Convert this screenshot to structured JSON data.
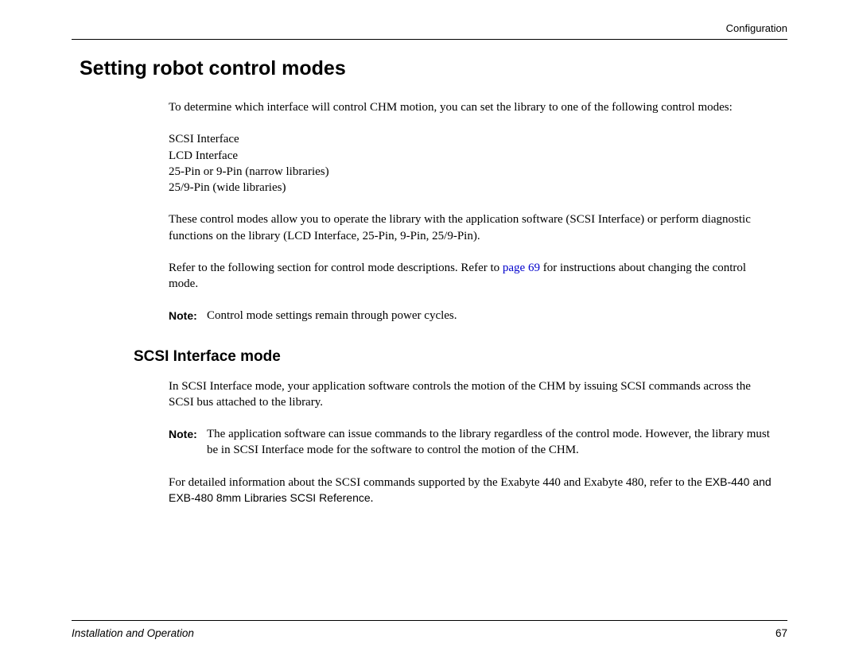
{
  "header": {
    "section": "Configuration"
  },
  "title": "Setting robot control modes",
  "intro": "To determine which interface will control CHM motion, you can set the library to one of the following control modes:",
  "modes": [
    "SCSI Interface",
    "LCD Interface",
    "25-Pin or 9-Pin (narrow libraries)",
    "25/9-Pin (wide libraries)"
  ],
  "para2": "These control modes allow you to operate the library with the application software (SCSI Interface) or perform diagnostic functions on the library (LCD Interface, 25-Pin, 9-Pin, 25/9-Pin).",
  "para3_pre": "Refer to the following section for control mode descriptions. Refer to ",
  "para3_link": "page 69",
  "para3_post": " for instructions about changing the control mode.",
  "note1_label": "Note:",
  "note1_text": "Control mode settings remain through power cycles.",
  "subheading": "SCSI Interface mode",
  "scsi_para1": "In SCSI Interface mode, your application software controls the motion of the CHM by issuing SCSI commands across the SCSI bus attached to the library.",
  "note2_label": "Note:",
  "note2_text": "The application software can issue commands to the library regardless of the control mode. However, the library must be in SCSI Interface mode for the software to control the motion of the CHM.",
  "scsi_para2_pre": "For detailed information about the SCSI commands supported by the Exabyte 440 and Exabyte 480, refer to the ",
  "scsi_para2_ref": "EXB-440 and EXB-480 8mm Libraries SCSI Reference",
  "scsi_para2_post": ".",
  "footer": {
    "left": "Installation and Operation",
    "page": "67"
  },
  "colors": {
    "text": "#000000",
    "link": "#0000cc",
    "background": "#ffffff",
    "rule": "#000000"
  },
  "fonts": {
    "heading": "Arial",
    "body": "Georgia",
    "h1_size": 25,
    "h2_size": 19,
    "body_size": 15,
    "header_size": 13
  }
}
